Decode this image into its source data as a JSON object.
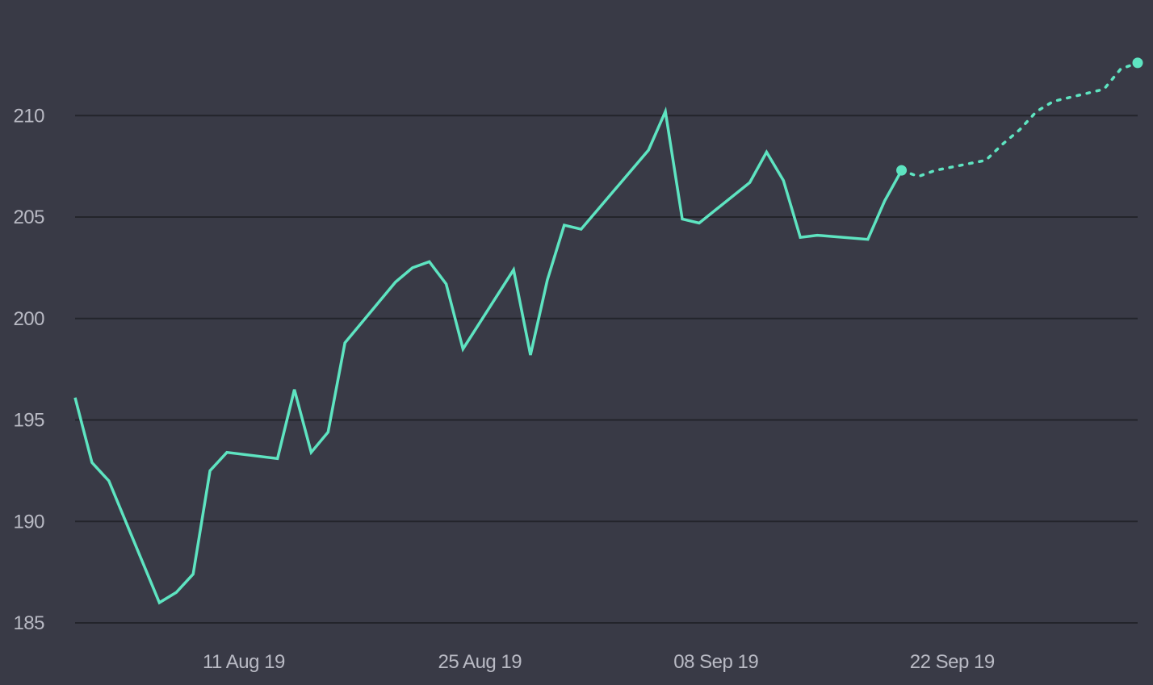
{
  "chart_data": {
    "type": "line",
    "title": "",
    "xlabel": "",
    "ylabel": "",
    "x_ticks": [
      "11 Aug 19",
      "25 Aug 19",
      "08 Sep 19",
      "22 Sep 19"
    ],
    "y_ticks": [
      185,
      190,
      195,
      200,
      205,
      210
    ],
    "ylim": [
      185,
      213.9
    ],
    "xlim": [
      "2019-08-01",
      "2019-10-03"
    ],
    "grid": true,
    "colors": {
      "background": "#393a46",
      "grid": "#23242b",
      "tick_text": "#b9bac4",
      "series": "#5ee4c1"
    },
    "series": [
      {
        "style": "solid",
        "points": [
          [
            "2019-08-01",
            196.1
          ],
          [
            "2019-08-02",
            192.9
          ],
          [
            "2019-08-03",
            192.0
          ],
          [
            "2019-08-06",
            186.0
          ],
          [
            "2019-08-07",
            186.5
          ],
          [
            "2019-08-08",
            187.4
          ],
          [
            "2019-08-09",
            192.5
          ],
          [
            "2019-08-10",
            193.4
          ],
          [
            "2019-08-13",
            193.1
          ],
          [
            "2019-08-14",
            196.5
          ],
          [
            "2019-08-15",
            193.4
          ],
          [
            "2019-08-16",
            194.4
          ],
          [
            "2019-08-17",
            198.8
          ],
          [
            "2019-08-20",
            201.8
          ],
          [
            "2019-08-21",
            202.5
          ],
          [
            "2019-08-22",
            202.8
          ],
          [
            "2019-08-23",
            201.7
          ],
          [
            "2019-08-24",
            198.5
          ],
          [
            "2019-08-27",
            202.4
          ],
          [
            "2019-08-28",
            198.2
          ],
          [
            "2019-08-29",
            201.9
          ],
          [
            "2019-08-30",
            204.6
          ],
          [
            "2019-08-31",
            204.4
          ],
          [
            "2019-09-04",
            208.3
          ],
          [
            "2019-09-05",
            210.2
          ],
          [
            "2019-09-06",
            204.9
          ],
          [
            "2019-09-07",
            204.7
          ],
          [
            "2019-09-10",
            206.7
          ],
          [
            "2019-09-11",
            208.2
          ],
          [
            "2019-09-12",
            206.8
          ],
          [
            "2019-09-13",
            204.0
          ],
          [
            "2019-09-14",
            204.1
          ],
          [
            "2019-09-17",
            203.9
          ],
          [
            "2019-09-18",
            205.8
          ],
          [
            "2019-09-19",
            207.3
          ]
        ]
      },
      {
        "style": "dotted",
        "points": [
          [
            "2019-09-19",
            207.3
          ],
          [
            "2019-09-20",
            207.0
          ],
          [
            "2019-09-21",
            207.3
          ],
          [
            "2019-09-24",
            207.8
          ],
          [
            "2019-09-25",
            208.6
          ],
          [
            "2019-09-26",
            209.3
          ],
          [
            "2019-09-27",
            210.2
          ],
          [
            "2019-09-28",
            210.7
          ],
          [
            "2019-10-01",
            211.3
          ],
          [
            "2019-10-02",
            212.3
          ],
          [
            "2019-10-03",
            212.6
          ]
        ]
      }
    ]
  }
}
